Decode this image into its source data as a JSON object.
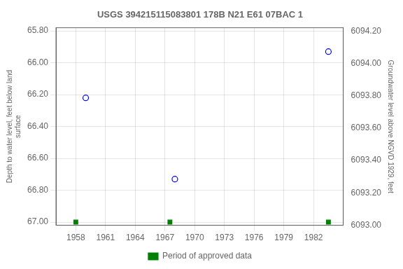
{
  "chart_data": {
    "type": "scatter",
    "title": "USGS 394215115083801 178B N21 E61 07BAC 1",
    "y_label": "Depth to water level, feet below land\nsurface",
    "y2_label": "Groundwater level above NGVD 1929, feet",
    "series": [
      {
        "x": [
          1959.0,
          1968.0,
          1983.5
        ],
        "values": [
          66.22,
          66.73,
          65.93
        ],
        "color": "#0000ff",
        "marker": "circle"
      },
      {
        "name": "Period of approved data",
        "x": [
          1958.0,
          1967.5,
          1983.5
        ],
        "values": [
          67.0,
          67.0,
          67.0
        ],
        "color": "#008000",
        "marker": "square"
      }
    ],
    "xlim": [
      1956.0,
      1985.0
    ],
    "xticks": [
      1958,
      1961,
      1964,
      1967,
      1970,
      1973,
      1976,
      1979,
      1982
    ],
    "ylim": [
      67.02,
      65.78
    ],
    "yticks": [
      {
        "value": 65.8,
        "label": "65.80"
      },
      {
        "value": 66.0,
        "label": "66.00"
      },
      {
        "value": 66.2,
        "label": "66.20"
      },
      {
        "value": 66.4,
        "label": "66.40"
      },
      {
        "value": 66.6,
        "label": "66.60"
      },
      {
        "value": 66.8,
        "label": "66.80"
      },
      {
        "value": 67.0,
        "label": "67.00"
      }
    ],
    "y2lim": [
      6093.0,
      6094.22
    ],
    "y2ticks": [
      {
        "value": 6093.0,
        "label": "6093.00"
      },
      {
        "value": 6093.2,
        "label": "6093.20"
      },
      {
        "value": 6093.4,
        "label": "6093.40"
      },
      {
        "value": 6093.6,
        "label": "6093.60"
      },
      {
        "value": 6093.8,
        "label": "6093.80"
      },
      {
        "value": 6094.0,
        "label": "6094.00"
      },
      {
        "value": 6094.2,
        "label": "6094.20"
      }
    ],
    "grid": true,
    "legend": "bottom"
  }
}
